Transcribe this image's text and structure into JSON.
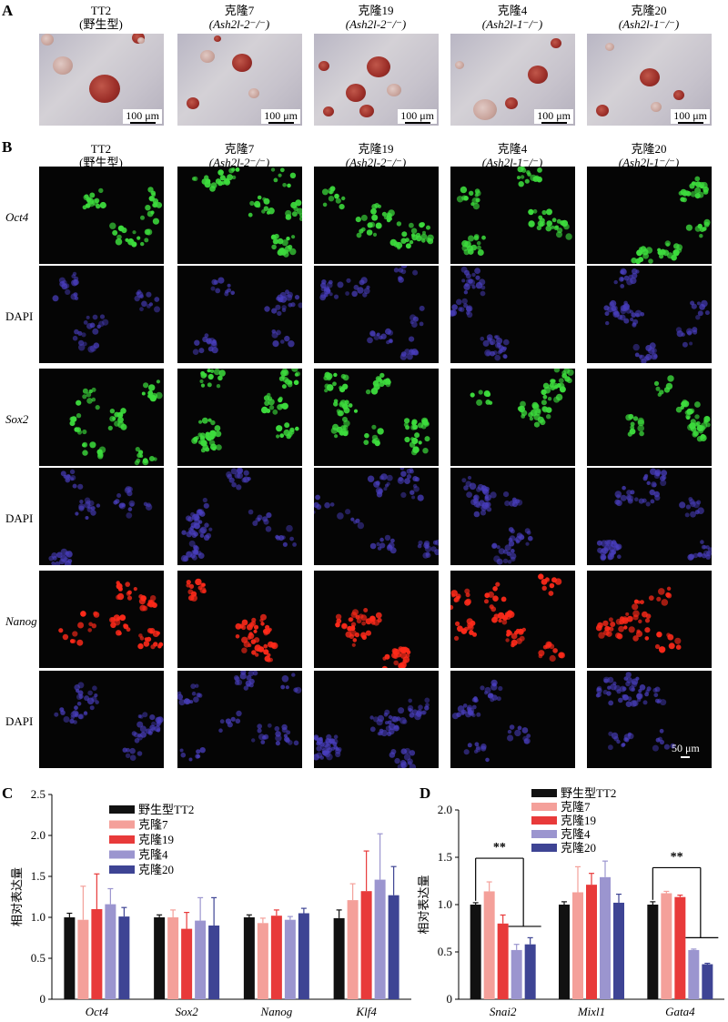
{
  "panels": {
    "A": "A",
    "B": "B",
    "C": "C",
    "D": "D"
  },
  "columns": [
    {
      "name": "TT2",
      "genotype": "(野生型)",
      "italic": false
    },
    {
      "name": "克隆7",
      "genotype": "(Ash2l-2⁻/⁻)",
      "italic": true
    },
    {
      "name": "克隆19",
      "genotype": "(Ash2l-2⁻/⁻)",
      "italic": true
    },
    {
      "name": "克隆4",
      "genotype": "(Ash2l-1⁻/⁻)",
      "italic": true
    },
    {
      "name": "克隆20",
      "genotype": "(Ash2l-1⁻/⁻)",
      "italic": true
    }
  ],
  "scalebar_A": "100 μm",
  "scalebar_B": "50 μm",
  "rows_B": [
    {
      "label": "Oct4",
      "italic": true,
      "color": "#3ddc3d"
    },
    {
      "label": "DAPI",
      "italic": false,
      "color": "#4a3fc0"
    },
    {
      "label": "Sox2",
      "italic": true,
      "color": "#3ddc3d"
    },
    {
      "label": "DAPI",
      "italic": false,
      "color": "#4a3fc0"
    },
    {
      "label": "Nanog",
      "italic": true,
      "color": "#ff2a1a"
    },
    {
      "label": "DAPI",
      "italic": false,
      "color": "#4a3fc0"
    }
  ],
  "chart_data": [
    {
      "type": "bar",
      "panel": "C",
      "ylabel": "相对表达量",
      "ylim": [
        0,
        2.5
      ],
      "yticks": [
        "0",
        "0.5",
        "1.0",
        "1.5",
        "2.0",
        "2.5"
      ],
      "categories": [
        "Oct4",
        "Sox2",
        "Nanog",
        "Klf4"
      ],
      "series": [
        {
          "name": "野生型TT2",
          "color": "#111111",
          "values": [
            1.0,
            1.0,
            1.0,
            0.99
          ],
          "errors": [
            0.05,
            0.03,
            0.03,
            0.1
          ]
        },
        {
          "name": "克隆7",
          "color": "#f4a09a",
          "values": [
            0.97,
            1.0,
            0.93,
            1.21
          ],
          "errors": [
            0.41,
            0.09,
            0.06,
            0.2
          ]
        },
        {
          "name": "克隆19",
          "color": "#e83a3a",
          "values": [
            1.1,
            0.86,
            1.02,
            1.32
          ],
          "errors": [
            0.43,
            0.2,
            0.07,
            0.49
          ]
        },
        {
          "name": "克隆4",
          "color": "#9b95cf",
          "values": [
            1.16,
            0.96,
            0.97,
            1.46
          ],
          "errors": [
            0.19,
            0.28,
            0.04,
            0.56
          ]
        },
        {
          "name": "克隆20",
          "color": "#3e4494",
          "values": [
            1.01,
            0.9,
            1.05,
            1.27
          ],
          "errors": [
            0.11,
            0.34,
            0.06,
            0.35
          ]
        }
      ]
    },
    {
      "type": "bar",
      "panel": "D",
      "ylabel": "相对表达量",
      "ylim": [
        0,
        2.0
      ],
      "yticks": [
        "0",
        "0.5",
        "1.0",
        "1.5",
        "2.0"
      ],
      "categories": [
        "Snai2",
        "Mixl1",
        "Gata4"
      ],
      "series": [
        {
          "name": "野生型TT2",
          "color": "#111111",
          "values": [
            1.0,
            1.0,
            1.0
          ],
          "errors": [
            0.02,
            0.03,
            0.03
          ]
        },
        {
          "name": "克隆7",
          "color": "#f4a09a",
          "values": [
            1.14,
            1.13,
            1.12
          ],
          "errors": [
            0.1,
            0.27,
            0.02
          ]
        },
        {
          "name": "克隆19",
          "color": "#e83a3a",
          "values": [
            0.8,
            1.21,
            1.08
          ],
          "errors": [
            0.09,
            0.12,
            0.02
          ]
        },
        {
          "name": "克隆4",
          "color": "#9b95cf",
          "values": [
            0.52,
            1.29,
            0.52
          ],
          "errors": [
            0.06,
            0.17,
            0.01
          ]
        },
        {
          "name": "克隆20",
          "color": "#3e4494",
          "values": [
            0.58,
            1.02,
            0.37
          ],
          "errors": [
            0.07,
            0.09,
            0.01
          ]
        }
      ],
      "significance": [
        {
          "label": "**",
          "category": "Snai2"
        },
        {
          "label": "**",
          "category": "Gata4"
        }
      ]
    }
  ]
}
